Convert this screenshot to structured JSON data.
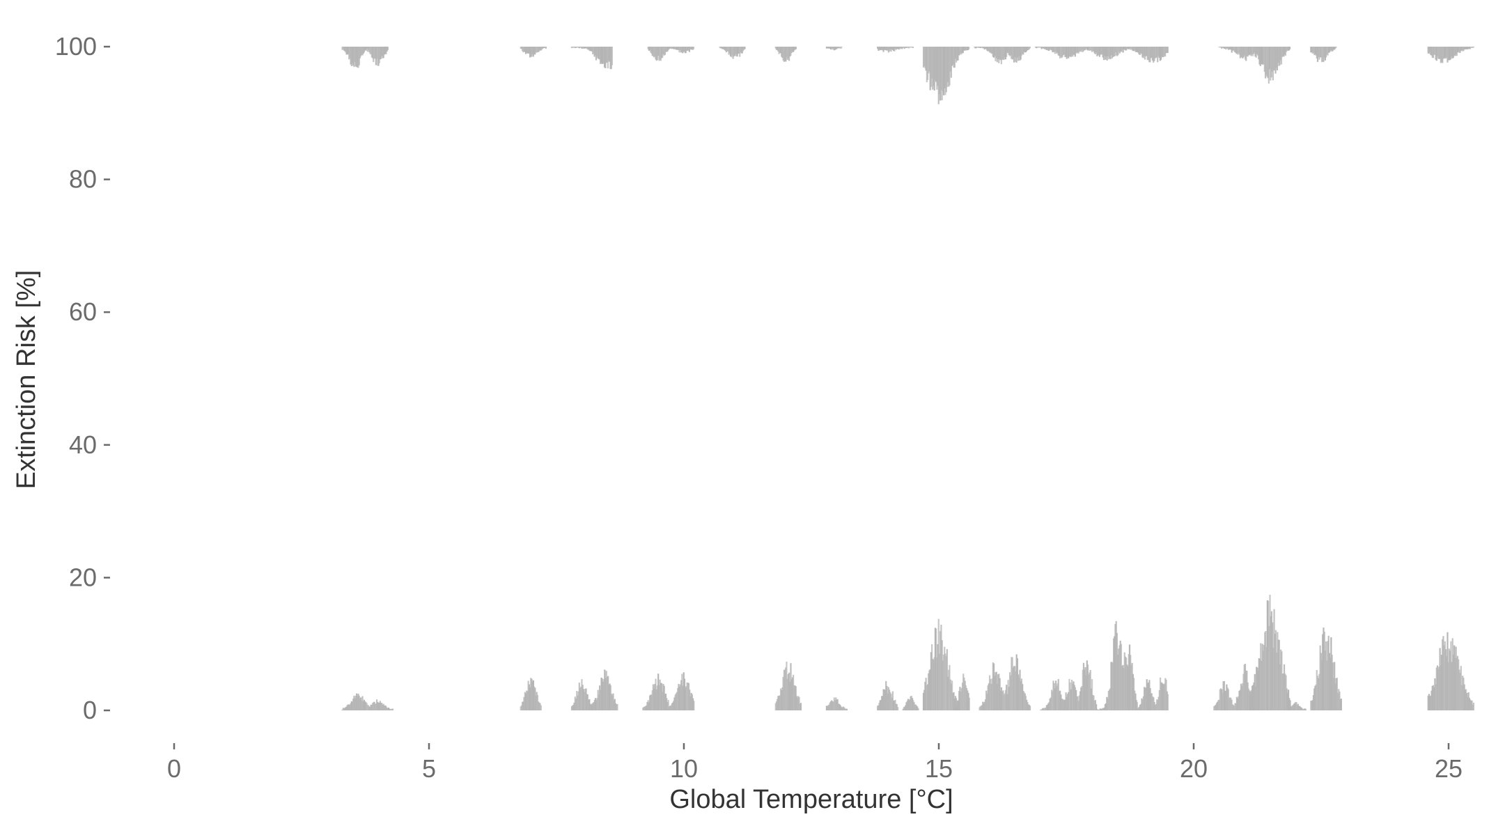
{
  "chart_data": {
    "type": "bar",
    "title": "",
    "xlabel": "Global Temperature [°C]",
    "ylabel": "Extinction Risk [%]",
    "xlim": [
      -1.1,
      25.7
    ],
    "ylim": [
      -9,
      105
    ],
    "x_ticks": [
      0,
      5,
      10,
      15,
      20,
      25
    ],
    "y_ticks": [
      0,
      20,
      40,
      60,
      80,
      100
    ],
    "grid": false,
    "legend": "none",
    "bar_color": "#b4b4b4",
    "series": [
      {
        "name": "",
        "baseline": 0,
        "direction": "up",
        "clusters": [
          {
            "from": 3.3,
            "to": 4.3,
            "peaks": [
              [
                3.6,
                2.8
              ],
              [
                4.0,
                1.5
              ]
            ]
          },
          {
            "from": 6.8,
            "to": 7.2,
            "peaks": [
              [
                7.0,
                5.5
              ]
            ]
          },
          {
            "from": 7.8,
            "to": 8.2,
            "peaks": [
              [
                8.0,
                5.0
              ]
            ]
          },
          {
            "from": 8.2,
            "to": 8.7,
            "peaks": [
              [
                8.45,
                6.2
              ]
            ]
          },
          {
            "from": 9.2,
            "to": 9.7,
            "peaks": [
              [
                9.5,
                5.5
              ]
            ]
          },
          {
            "from": 9.7,
            "to": 10.2,
            "peaks": [
              [
                10.0,
                5.6
              ]
            ]
          },
          {
            "from": 11.8,
            "to": 12.3,
            "peaks": [
              [
                12.05,
                7.8
              ]
            ]
          },
          {
            "from": 12.8,
            "to": 13.2,
            "peaks": [
              [
                12.95,
                2.0
              ]
            ]
          },
          {
            "from": 13.8,
            "to": 14.2,
            "peaks": [
              [
                14.0,
                4.5
              ]
            ]
          },
          {
            "from": 14.3,
            "to": 14.6,
            "peaks": [
              [
                14.45,
                2.3
              ]
            ]
          },
          {
            "from": 14.7,
            "to": 15.4,
            "peaks": [
              [
                15.0,
                14.2
              ]
            ]
          },
          {
            "from": 15.3,
            "to": 15.6,
            "peaks": [
              [
                15.5,
                7.0
              ]
            ]
          },
          {
            "from": 15.8,
            "to": 16.8,
            "peaks": [
              [
                16.1,
                7.3
              ],
              [
                16.5,
                9.5
              ]
            ]
          },
          {
            "from": 17.0,
            "to": 18.1,
            "peaks": [
              [
                17.3,
                5.5
              ],
              [
                17.6,
                5.3
              ],
              [
                17.9,
                8.8
              ]
            ]
          },
          {
            "from": 18.1,
            "to": 18.9,
            "peaks": [
              [
                18.5,
                14.6
              ],
              [
                18.7,
                11.0
              ]
            ]
          },
          {
            "from": 18.9,
            "to": 19.5,
            "peaks": [
              [
                19.1,
                6.0
              ],
              [
                19.4,
                6.5
              ]
            ]
          },
          {
            "from": 20.4,
            "to": 21.2,
            "peaks": [
              [
                20.6,
                4.5
              ],
              [
                21.0,
                7.0
              ]
            ]
          },
          {
            "from": 21.1,
            "to": 21.9,
            "peaks": [
              [
                21.5,
                17.5
              ]
            ]
          },
          {
            "from": 21.9,
            "to": 22.2,
            "peaks": [
              [
                22.0,
                1.2
              ]
            ]
          },
          {
            "from": 22.3,
            "to": 22.9,
            "peaks": [
              [
                22.6,
                13.5
              ]
            ]
          },
          {
            "from": 24.6,
            "to": 25.5,
            "peaks": [
              [
                25.0,
                12.5
              ]
            ]
          }
        ]
      },
      {
        "name": "",
        "baseline": 100,
        "direction": "down",
        "clusters": [
          {
            "from": 3.3,
            "to": 4.2,
            "peaks": [
              [
                3.55,
                3.5
              ],
              [
                4.0,
                3.0
              ]
            ]
          },
          {
            "from": 6.8,
            "to": 7.3,
            "peaks": [
              [
                7.0,
                1.6
              ]
            ]
          },
          {
            "from": 7.8,
            "to": 8.6,
            "peaks": [
              [
                8.5,
                3.5
              ]
            ]
          },
          {
            "from": 9.3,
            "to": 10.2,
            "peaks": [
              [
                9.5,
                2.3
              ],
              [
                10.0,
                1.0
              ]
            ]
          },
          {
            "from": 10.7,
            "to": 11.2,
            "peaks": [
              [
                11.0,
                1.8
              ]
            ]
          },
          {
            "from": 11.8,
            "to": 12.2,
            "peaks": [
              [
                12.0,
                2.5
              ]
            ]
          },
          {
            "from": 12.8,
            "to": 13.1,
            "peaks": [
              [
                12.95,
                0.4
              ]
            ]
          },
          {
            "from": 13.8,
            "to": 14.5,
            "peaks": [
              [
                14.0,
                0.7
              ]
            ]
          },
          {
            "from": 14.7,
            "to": 15.6,
            "peaks": [
              [
                15.0,
                9.0
              ]
            ]
          },
          {
            "from": 15.7,
            "to": 16.8,
            "peaks": [
              [
                16.2,
                2.8
              ],
              [
                16.5,
                2.5
              ]
            ]
          },
          {
            "from": 16.9,
            "to": 19.5,
            "peaks": [
              [
                17.5,
                1.8
              ],
              [
                18.3,
                2.0
              ],
              [
                19.2,
                2.5
              ]
            ]
          },
          {
            "from": 20.5,
            "to": 21.9,
            "peaks": [
              [
                21.5,
                5.5
              ],
              [
                21.0,
                2.0
              ]
            ]
          },
          {
            "from": 22.3,
            "to": 22.8,
            "peaks": [
              [
                22.5,
                2.5
              ]
            ]
          },
          {
            "from": 24.6,
            "to": 25.5,
            "peaks": [
              [
                24.9,
                2.5
              ]
            ]
          }
        ]
      }
    ]
  }
}
